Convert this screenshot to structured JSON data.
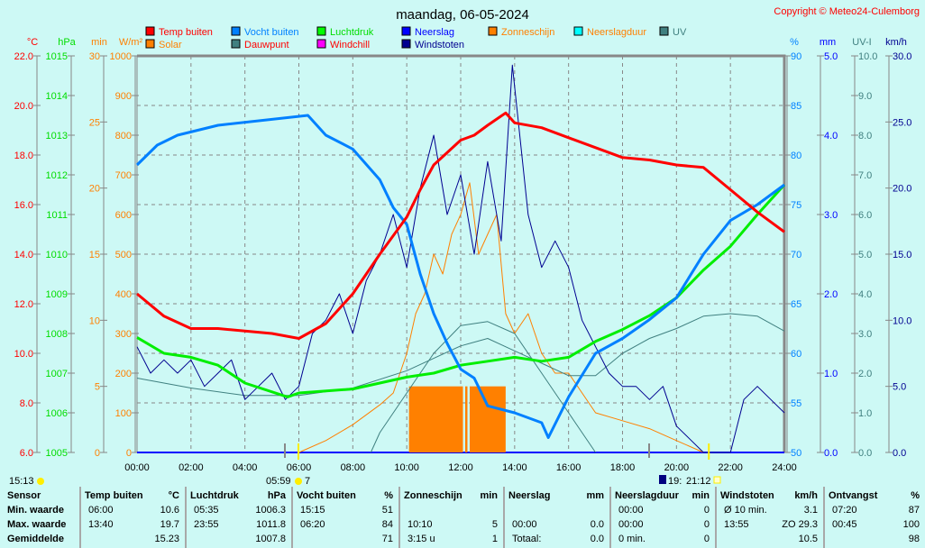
{
  "title": "maandag, 06-05-2024",
  "copyright": "Copyright © Meteo24-Culemborg",
  "legend": [
    {
      "label": "Temp buiten",
      "color": "#ff0000",
      "text": "#ff0000"
    },
    {
      "label": "Solar",
      "color": "#ff8000",
      "text": "#ff8000"
    },
    {
      "label": "Vocht buiten",
      "color": "#0080ff",
      "text": "#0080ff"
    },
    {
      "label": "Dauwpunt",
      "color": "#408080",
      "text": "#ff0000"
    },
    {
      "label": "Luchtdruk",
      "color": "#00ff00",
      "text": "#00dd00"
    },
    {
      "label": "Windchill",
      "color": "#ff00ff",
      "text": "#ff0000"
    },
    {
      "label": "Neerslag",
      "color": "#0000ff",
      "text": "#0000ff"
    },
    {
      "label": "Windstoten",
      "color": "#000090",
      "text": "#000090"
    },
    {
      "label": "Zonneschijn",
      "color": "#ff8000",
      "text": "#ff8000"
    },
    {
      "label": "Neerslagduur",
      "color": "#00ffff",
      "text": "#ff8000"
    },
    {
      "label": "UV",
      "color": "#408080",
      "text": "#408080"
    }
  ],
  "axes_left": [
    {
      "unit": "°C",
      "color": "#ff0000",
      "ticks": [
        "22.0",
        "20.0",
        "18.0",
        "16.0",
        "14.0",
        "12.0",
        "10.0",
        "8.0",
        "6.0"
      ]
    },
    {
      "unit": "hPa",
      "color": "#00dd00",
      "ticks": [
        "1015",
        "1014",
        "1013",
        "1012",
        "1011",
        "1010",
        "1009",
        "1008",
        "1007",
        "1006",
        "1005"
      ]
    },
    {
      "unit": "min",
      "color": "#ff8000",
      "ticks": [
        "30",
        "25",
        "20",
        "15",
        "10",
        "5",
        "0"
      ]
    },
    {
      "unit": "W/m²",
      "color": "#ff8000",
      "ticks": [
        "1000",
        "900",
        "800",
        "700",
        "600",
        "500",
        "400",
        "300",
        "200",
        "100",
        "0"
      ]
    }
  ],
  "axes_right": [
    {
      "unit": "%",
      "color": "#0080ff",
      "ticks": [
        "90",
        "85",
        "80",
        "75",
        "70",
        "65",
        "60",
        "55",
        "50"
      ]
    },
    {
      "unit": "mm",
      "color": "#0000ff",
      "ticks": [
        "5.0",
        "4.0",
        "3.0",
        "2.0",
        "1.0",
        "0.0"
      ]
    },
    {
      "unit": "UV-I",
      "color": "#408080",
      "ticks": [
        "10.0",
        "9.0",
        "8.0",
        "7.0",
        "6.0",
        "5.0",
        "4.0",
        "3.0",
        "2.0",
        "1.0",
        "0.0"
      ]
    },
    {
      "unit": "km/h",
      "color": "#000090",
      "ticks": [
        "30.0",
        "25.0",
        "20.0",
        "15.0",
        "10.0",
        "5.0",
        "0.0"
      ]
    }
  ],
  "x_ticks": [
    "00:00",
    "02:00",
    "04:00",
    "06:00",
    "08:00",
    "10:00",
    "12:00",
    "14:00",
    "16:00",
    "18:00",
    "20:00",
    "22:00",
    "24:00"
  ],
  "markers": {
    "moon": "15:13",
    "sunrise": "05:59",
    "sunrise_day": "7",
    "moon_set": "19:",
    "sunset": "21:12"
  },
  "chart_data": {
    "type": "line",
    "xlim": [
      "00:00",
      "24:00"
    ],
    "series": [
      {
        "name": "Temp buiten",
        "axis": "°C",
        "ylim": [
          6,
          22
        ],
        "color": "#ff0000",
        "width": 3,
        "points": [
          [
            "00:00",
            12.4
          ],
          [
            "01:00",
            11.5
          ],
          [
            "02:00",
            11.0
          ],
          [
            "03:00",
            11.0
          ],
          [
            "04:00",
            10.9
          ],
          [
            "05:00",
            10.8
          ],
          [
            "06:00",
            10.6
          ],
          [
            "07:00",
            11.2
          ],
          [
            "08:00",
            12.4
          ],
          [
            "09:00",
            14.0
          ],
          [
            "10:00",
            15.5
          ],
          [
            "10:30",
            16.6
          ],
          [
            "11:00",
            17.6
          ],
          [
            "12:00",
            18.6
          ],
          [
            "12:30",
            18.8
          ],
          [
            "13:00",
            19.2
          ],
          [
            "13:40",
            19.7
          ],
          [
            "14:00",
            19.3
          ],
          [
            "15:00",
            19.1
          ],
          [
            "16:00",
            18.7
          ],
          [
            "17:00",
            18.3
          ],
          [
            "18:00",
            17.9
          ],
          [
            "19:00",
            17.8
          ],
          [
            "20:00",
            17.6
          ],
          [
            "21:00",
            17.5
          ],
          [
            "22:00",
            16.6
          ],
          [
            "23:00",
            15.7
          ],
          [
            "24:00",
            14.9
          ]
        ]
      },
      {
        "name": "Vocht buiten",
        "axis": "%",
        "ylim": [
          50,
          90
        ],
        "color": "#0080ff",
        "width": 3,
        "points": [
          [
            "00:00",
            79
          ],
          [
            "00:45",
            81
          ],
          [
            "01:30",
            82
          ],
          [
            "03:00",
            83
          ],
          [
            "06:20",
            84
          ],
          [
            "07:00",
            82
          ],
          [
            "08:00",
            80.6
          ],
          [
            "09:00",
            77.5
          ],
          [
            "09:30",
            74.7
          ],
          [
            "10:00",
            73
          ],
          [
            "10:30",
            68
          ],
          [
            "11:00",
            64
          ],
          [
            "11:30",
            61
          ],
          [
            "12:00",
            58.4
          ],
          [
            "12:30",
            57.5
          ],
          [
            "13:00",
            54.7
          ],
          [
            "14:00",
            54
          ],
          [
            "15:00",
            53
          ],
          [
            "15:15",
            51.5
          ],
          [
            "16:00",
            55.6
          ],
          [
            "17:00",
            60
          ],
          [
            "18:00",
            61.5
          ],
          [
            "19:00",
            63.4
          ],
          [
            "20:00",
            65.6
          ],
          [
            "21:00",
            70
          ],
          [
            "22:00",
            73.4
          ],
          [
            "23:00",
            75
          ],
          [
            "24:00",
            77
          ]
        ]
      },
      {
        "name": "Luchtdruk",
        "axis": "hPa",
        "ylim": [
          1005,
          1015
        ],
        "color": "#00ee00",
        "width": 3,
        "points": [
          [
            "00:00",
            1007.9
          ],
          [
            "01:00",
            1007.5
          ],
          [
            "02:00",
            1007.4
          ],
          [
            "03:00",
            1007.2
          ],
          [
            "04:00",
            1006.75
          ],
          [
            "05:35",
            1006.4
          ],
          [
            "06:00",
            1006.5
          ],
          [
            "08:00",
            1006.6
          ],
          [
            "10:00",
            1006.9
          ],
          [
            "11:00",
            1007.0
          ],
          [
            "12:00",
            1007.2
          ],
          [
            "13:00",
            1007.3
          ],
          [
            "14:00",
            1007.4
          ],
          [
            "15:00",
            1007.3
          ],
          [
            "16:00",
            1007.4
          ],
          [
            "17:00",
            1007.8
          ],
          [
            "18:00",
            1008.1
          ],
          [
            "19:00",
            1008.45
          ],
          [
            "20:00",
            1008.9
          ],
          [
            "21:00",
            1009.6
          ],
          [
            "22:00",
            1010.2
          ],
          [
            "23:00",
            1011.0
          ],
          [
            "24:00",
            1011.75
          ]
        ]
      },
      {
        "name": "Windstoten",
        "axis": "km/h",
        "ylim": [
          0,
          30
        ],
        "color": "#000090",
        "width": 1,
        "points": [
          [
            "00:00",
            8
          ],
          [
            "00:30",
            6
          ],
          [
            "01:00",
            7
          ],
          [
            "01:30",
            6
          ],
          [
            "02:00",
            7
          ],
          [
            "02:30",
            5
          ],
          [
            "03:00",
            6
          ],
          [
            "03:30",
            7
          ],
          [
            "04:00",
            4
          ],
          [
            "04:30",
            5
          ],
          [
            "05:00",
            6
          ],
          [
            "05:30",
            4
          ],
          [
            "06:00",
            5
          ],
          [
            "06:30",
            9
          ],
          [
            "07:00",
            10
          ],
          [
            "07:30",
            12
          ],
          [
            "08:00",
            9
          ],
          [
            "08:30",
            13
          ],
          [
            "09:00",
            15
          ],
          [
            "09:30",
            18
          ],
          [
            "10:00",
            14
          ],
          [
            "10:30",
            20
          ],
          [
            "11:00",
            24
          ],
          [
            "11:30",
            18
          ],
          [
            "12:00",
            21
          ],
          [
            "12:30",
            15
          ],
          [
            "13:00",
            22
          ],
          [
            "13:30",
            16
          ],
          [
            "13:55",
            29.3
          ],
          [
            "14:30",
            18
          ],
          [
            "15:00",
            14
          ],
          [
            "15:30",
            16
          ],
          [
            "16:00",
            14
          ],
          [
            "16:30",
            10
          ],
          [
            "17:00",
            8
          ],
          [
            "17:30",
            6
          ],
          [
            "18:00",
            5
          ],
          [
            "18:30",
            5
          ],
          [
            "19:00",
            4
          ],
          [
            "19:30",
            5
          ],
          [
            "20:00",
            2
          ],
          [
            "20:30",
            1
          ],
          [
            "21:00",
            0
          ],
          [
            "21:30",
            0
          ],
          [
            "22:00",
            0
          ],
          [
            "22:30",
            4
          ],
          [
            "23:00",
            5
          ],
          [
            "23:30",
            4
          ],
          [
            "24:00",
            3
          ]
        ]
      },
      {
        "name": "Dauwpunt",
        "axis": "°C",
        "ylim": [
          6,
          22
        ],
        "color": "#408080",
        "width": 1,
        "points": [
          [
            "00:00",
            9.0
          ],
          [
            "02:00",
            8.6
          ],
          [
            "04:00",
            8.3
          ],
          [
            "06:00",
            8.3
          ],
          [
            "08:00",
            8.6
          ],
          [
            "10:00",
            9.3
          ],
          [
            "12:00",
            10.3
          ],
          [
            "13:00",
            10.6
          ],
          [
            "14:00",
            10.1
          ],
          [
            "15:00",
            9.6
          ],
          [
            "16:00",
            9.1
          ],
          [
            "17:00",
            9.1
          ],
          [
            "18:00",
            10.0
          ],
          [
            "19:00",
            10.6
          ],
          [
            "20:00",
            11.0
          ],
          [
            "21:00",
            11.5
          ],
          [
            "22:00",
            11.6
          ],
          [
            "23:00",
            11.5
          ],
          [
            "24:00",
            10.9
          ]
        ]
      },
      {
        "name": "UV",
        "axis": "UV-I",
        "ylim": [
          0,
          10
        ],
        "color": "#408080",
        "width": 1,
        "points": [
          [
            "08:40",
            0
          ],
          [
            "09:00",
            0.5
          ],
          [
            "10:00",
            1.5
          ],
          [
            "11:00",
            2.5
          ],
          [
            "12:00",
            3.2
          ],
          [
            "13:00",
            3.3
          ],
          [
            "14:00",
            3.0
          ],
          [
            "15:00",
            2.0
          ],
          [
            "16:00",
            1.0
          ],
          [
            "17:00",
            0
          ]
        ]
      },
      {
        "name": "Solar",
        "axis": "W/m²",
        "ylim": [
          0,
          1000
        ],
        "color": "#ff8000",
        "width": 1,
        "points": [
          [
            "06:00",
            0
          ],
          [
            "07:00",
            30
          ],
          [
            "08:00",
            70
          ],
          [
            "09:00",
            120
          ],
          [
            "09:30",
            150
          ],
          [
            "10:00",
            250
          ],
          [
            "10:20",
            350
          ],
          [
            "10:40",
            400
          ],
          [
            "11:00",
            500
          ],
          [
            "11:20",
            450
          ],
          [
            "11:40",
            550
          ],
          [
            "12:00",
            600
          ],
          [
            "12:20",
            680
          ],
          [
            "12:40",
            500
          ],
          [
            "13:00",
            550
          ],
          [
            "13:20",
            600
          ],
          [
            "13:40",
            350
          ],
          [
            "14:00",
            300
          ],
          [
            "14:30",
            350
          ],
          [
            "15:00",
            250
          ],
          [
            "15:30",
            200
          ],
          [
            "16:00",
            200
          ],
          [
            "17:00",
            100
          ],
          [
            "18:00",
            80
          ],
          [
            "19:00",
            60
          ],
          [
            "20:00",
            30
          ],
          [
            "21:00",
            0
          ]
        ]
      }
    ],
    "bars": {
      "name": "Zonneschijn",
      "axis": "min",
      "ylim": [
        0,
        30
      ],
      "color": "#ff8000",
      "blocks": [
        [
          "10:05",
          "12:05",
          5
        ],
        [
          "12:10",
          "12:15",
          5
        ],
        [
          "12:20",
          "13:40",
          5
        ]
      ]
    }
  },
  "table": {
    "row_labels": [
      "Sensor",
      "Min. waarde",
      "Max. waarde",
      "Gemiddelde"
    ],
    "groups": [
      {
        "name": "Temp buiten",
        "unit": "°C",
        "rows": [
          [
            "06:00",
            "10.6"
          ],
          [
            "13:40",
            "19.7"
          ],
          [
            "",
            "15.23"
          ]
        ]
      },
      {
        "name": "Luchtdruk",
        "unit": "hPa",
        "rows": [
          [
            "05:35",
            "1006.3"
          ],
          [
            "23:55",
            "1011.8"
          ],
          [
            "",
            "1007.8"
          ]
        ]
      },
      {
        "name": "Vocht buiten",
        "unit": "%",
        "rows": [
          [
            "15:15",
            "51"
          ],
          [
            "06:20",
            "84"
          ],
          [
            "",
            "71"
          ]
        ]
      },
      {
        "name": "Zonneschijn",
        "unit": "min",
        "rows": [
          [
            "",
            ""
          ],
          [
            "10:10",
            "5"
          ],
          [
            "3:15 u",
            "1"
          ]
        ]
      },
      {
        "name": "Neerslag",
        "unit": "mm",
        "rows": [
          [
            "",
            ""
          ],
          [
            "00:00",
            "0.0"
          ],
          [
            "Totaal:",
            "0.0"
          ]
        ]
      },
      {
        "name": "Neerslagduur",
        "unit": "min",
        "rows": [
          [
            "00:00",
            "0"
          ],
          [
            "00:00",
            "0"
          ],
          [
            "0 min.",
            "0"
          ]
        ]
      },
      {
        "name": "Windstoten",
        "unit": "km/h",
        "rows": [
          [
            "Ø 10 min.",
            "3.1"
          ],
          [
            "13:55",
            "ZO 29.3"
          ],
          [
            "",
            "10.5"
          ]
        ]
      },
      {
        "name": "Ontvangst",
        "unit": "%",
        "rows": [
          [
            "07:20",
            "87"
          ],
          [
            "00:45",
            "100"
          ],
          [
            "",
            "98"
          ]
        ]
      }
    ]
  }
}
